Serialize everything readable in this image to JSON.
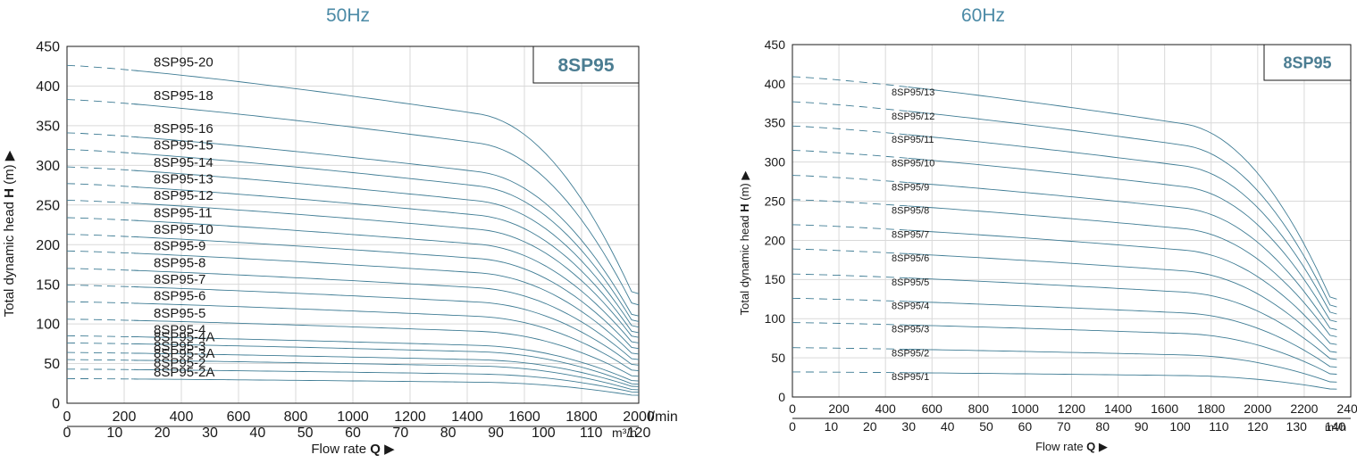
{
  "chart_data": [
    {
      "type": "line",
      "title": "50Hz",
      "model_box": "8SP95",
      "ylabel_prefix": "Total dynamic head ",
      "ylabel_bold": "H",
      "ylabel_suffix": " (m) ▶",
      "xlabel_prefix": "Flow rate ",
      "xlabel_bold": "Q",
      "xlabel_suffix": " ▶",
      "x_unit": "l/min",
      "x2_unit": "m³/h",
      "xlim": [
        0,
        2000
      ],
      "ylim": [
        0,
        450
      ],
      "x_ticks": [
        "0",
        "200",
        "400",
        "600",
        "800",
        "1000",
        "1200",
        "1400",
        "1600",
        "1800",
        "2000"
      ],
      "x2_ticks": [
        "0",
        "10",
        "20",
        "30",
        "40",
        "50",
        "60",
        "70",
        "80",
        "90",
        "100",
        "110",
        "120"
      ],
      "y_ticks": [
        "0",
        "50",
        "100",
        "150",
        "200",
        "250",
        "300",
        "350",
        "400",
        "450"
      ],
      "grid": true,
      "dashed_until_x": 250,
      "series": [
        {
          "name": "8SP95-20",
          "shutoff": 426,
          "end": 138
        },
        {
          "name": "8SP95-18",
          "shutoff": 383,
          "end": 124
        },
        {
          "name": "8SP95-16",
          "shutoff": 341,
          "end": 110
        },
        {
          "name": "8SP95-15",
          "shutoff": 320,
          "end": 103
        },
        {
          "name": "8SP95-14",
          "shutoff": 298,
          "end": 96
        },
        {
          "name": "8SP95-13",
          "shutoff": 277,
          "end": 89
        },
        {
          "name": "8SP95-12",
          "shutoff": 256,
          "end": 83
        },
        {
          "name": "8SP95-11",
          "shutoff": 234,
          "end": 76
        },
        {
          "name": "8SP95-10",
          "shutoff": 213,
          "end": 69
        },
        {
          "name": "8SP95-9",
          "shutoff": 192,
          "end": 62
        },
        {
          "name": "8SP95-8",
          "shutoff": 170,
          "end": 55
        },
        {
          "name": "8SP95-7",
          "shutoff": 149,
          "end": 48
        },
        {
          "name": "8SP95-6",
          "shutoff": 128,
          "end": 41
        },
        {
          "name": "8SP95-5",
          "shutoff": 106,
          "end": 34
        },
        {
          "name": "8SP95-4",
          "shutoff": 85,
          "end": 28
        },
        {
          "name": "8SP95-4A",
          "shutoff": 76,
          "end": 24
        },
        {
          "name": "8SP95-3",
          "shutoff": 64,
          "end": 21
        },
        {
          "name": "8SP95-3A",
          "shutoff": 55,
          "end": 17
        },
        {
          "name": "8SP95-2",
          "shutoff": 43,
          "end": 14
        },
        {
          "name": "8SP95-2A",
          "shutoff": 31,
          "end": 10
        }
      ]
    },
    {
      "type": "line",
      "title": "60Hz",
      "model_box": "8SP95",
      "ylabel_prefix": "Total dynamic head ",
      "ylabel_bold": "H",
      "ylabel_suffix": " (m) ▶",
      "xlabel_prefix": "Flow rate ",
      "xlabel_bold": "Q",
      "xlabel_suffix": " ▶",
      "x_unit": "l/min",
      "x2_unit": "m³/h",
      "xlim": [
        0,
        2400
      ],
      "ylim": [
        0,
        450
      ],
      "x_ticks": [
        "0",
        "200",
        "400",
        "600",
        "800",
        "1000",
        "1200",
        "1400",
        "1600",
        "1800",
        "2000",
        "2200",
        "2400"
      ],
      "x2_ticks": [
        "0",
        "10",
        "20",
        "30",
        "40",
        "50",
        "60",
        "70",
        "80",
        "90",
        "100",
        "110",
        "120",
        "130",
        "140"
      ],
      "y_ticks": [
        "0",
        "50",
        "100",
        "150",
        "200",
        "250",
        "300",
        "350",
        "400",
        "450"
      ],
      "grid": true,
      "dashed_until_x": 500,
      "series": [
        {
          "name": "8SP95/13",
          "shutoff": 409,
          "end": 125
        },
        {
          "name": "8SP95/12",
          "shutoff": 377,
          "end": 115
        },
        {
          "name": "8SP95/11",
          "shutoff": 346,
          "end": 106
        },
        {
          "name": "8SP95/10",
          "shutoff": 315,
          "end": 96
        },
        {
          "name": "8SP95/9",
          "shutoff": 283,
          "end": 86
        },
        {
          "name": "8SP95/8",
          "shutoff": 252,
          "end": 77
        },
        {
          "name": "8SP95/7",
          "shutoff": 220,
          "end": 67
        },
        {
          "name": "8SP95/6",
          "shutoff": 189,
          "end": 57
        },
        {
          "name": "8SP95/5",
          "shutoff": 157,
          "end": 48
        },
        {
          "name": "8SP95/4",
          "shutoff": 126,
          "end": 38
        },
        {
          "name": "8SP95/3",
          "shutoff": 95,
          "end": 29
        },
        {
          "name": "8SP95/2",
          "shutoff": 63,
          "end": 19
        },
        {
          "name": "8SP95/1",
          "shutoff": 32,
          "end": 10
        }
      ]
    }
  ]
}
